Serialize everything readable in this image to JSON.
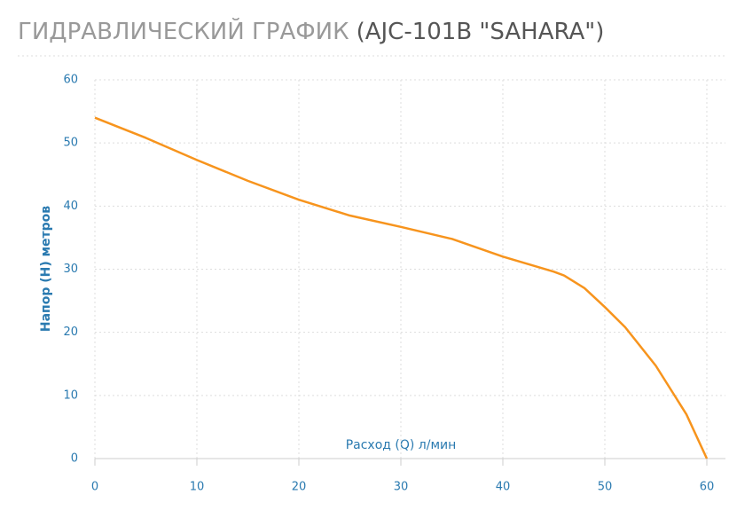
{
  "chart_data": {
    "type": "line",
    "title": "ГИДРАВЛИЧЕСКИЙ ГРАФИК",
    "subtitle": "(AJC-101B \"SAHARA\")",
    "x_label": "Расход (Q) л/мин",
    "y_label": "Напор (H) метров",
    "x": [
      0,
      5,
      10,
      15,
      20,
      25,
      30,
      35,
      40,
      45,
      46,
      48,
      50,
      52,
      55,
      58,
      60
    ],
    "series": [
      {
        "color": "#f7941d",
        "values": [
          54,
          50.8,
          47.3,
          44,
          41,
          38.5,
          36.7,
          34.8,
          32,
          29.6,
          29,
          27,
          24,
          20.8,
          14.7,
          7,
          0
        ]
      }
    ],
    "xlim": [
      0,
      60
    ],
    "xticks": [
      0,
      10,
      20,
      30,
      40,
      50,
      60
    ],
    "ylim": [
      0,
      60
    ],
    "yticks": [
      0,
      10,
      20,
      30,
      40,
      50,
      60
    ],
    "grid": true
  }
}
